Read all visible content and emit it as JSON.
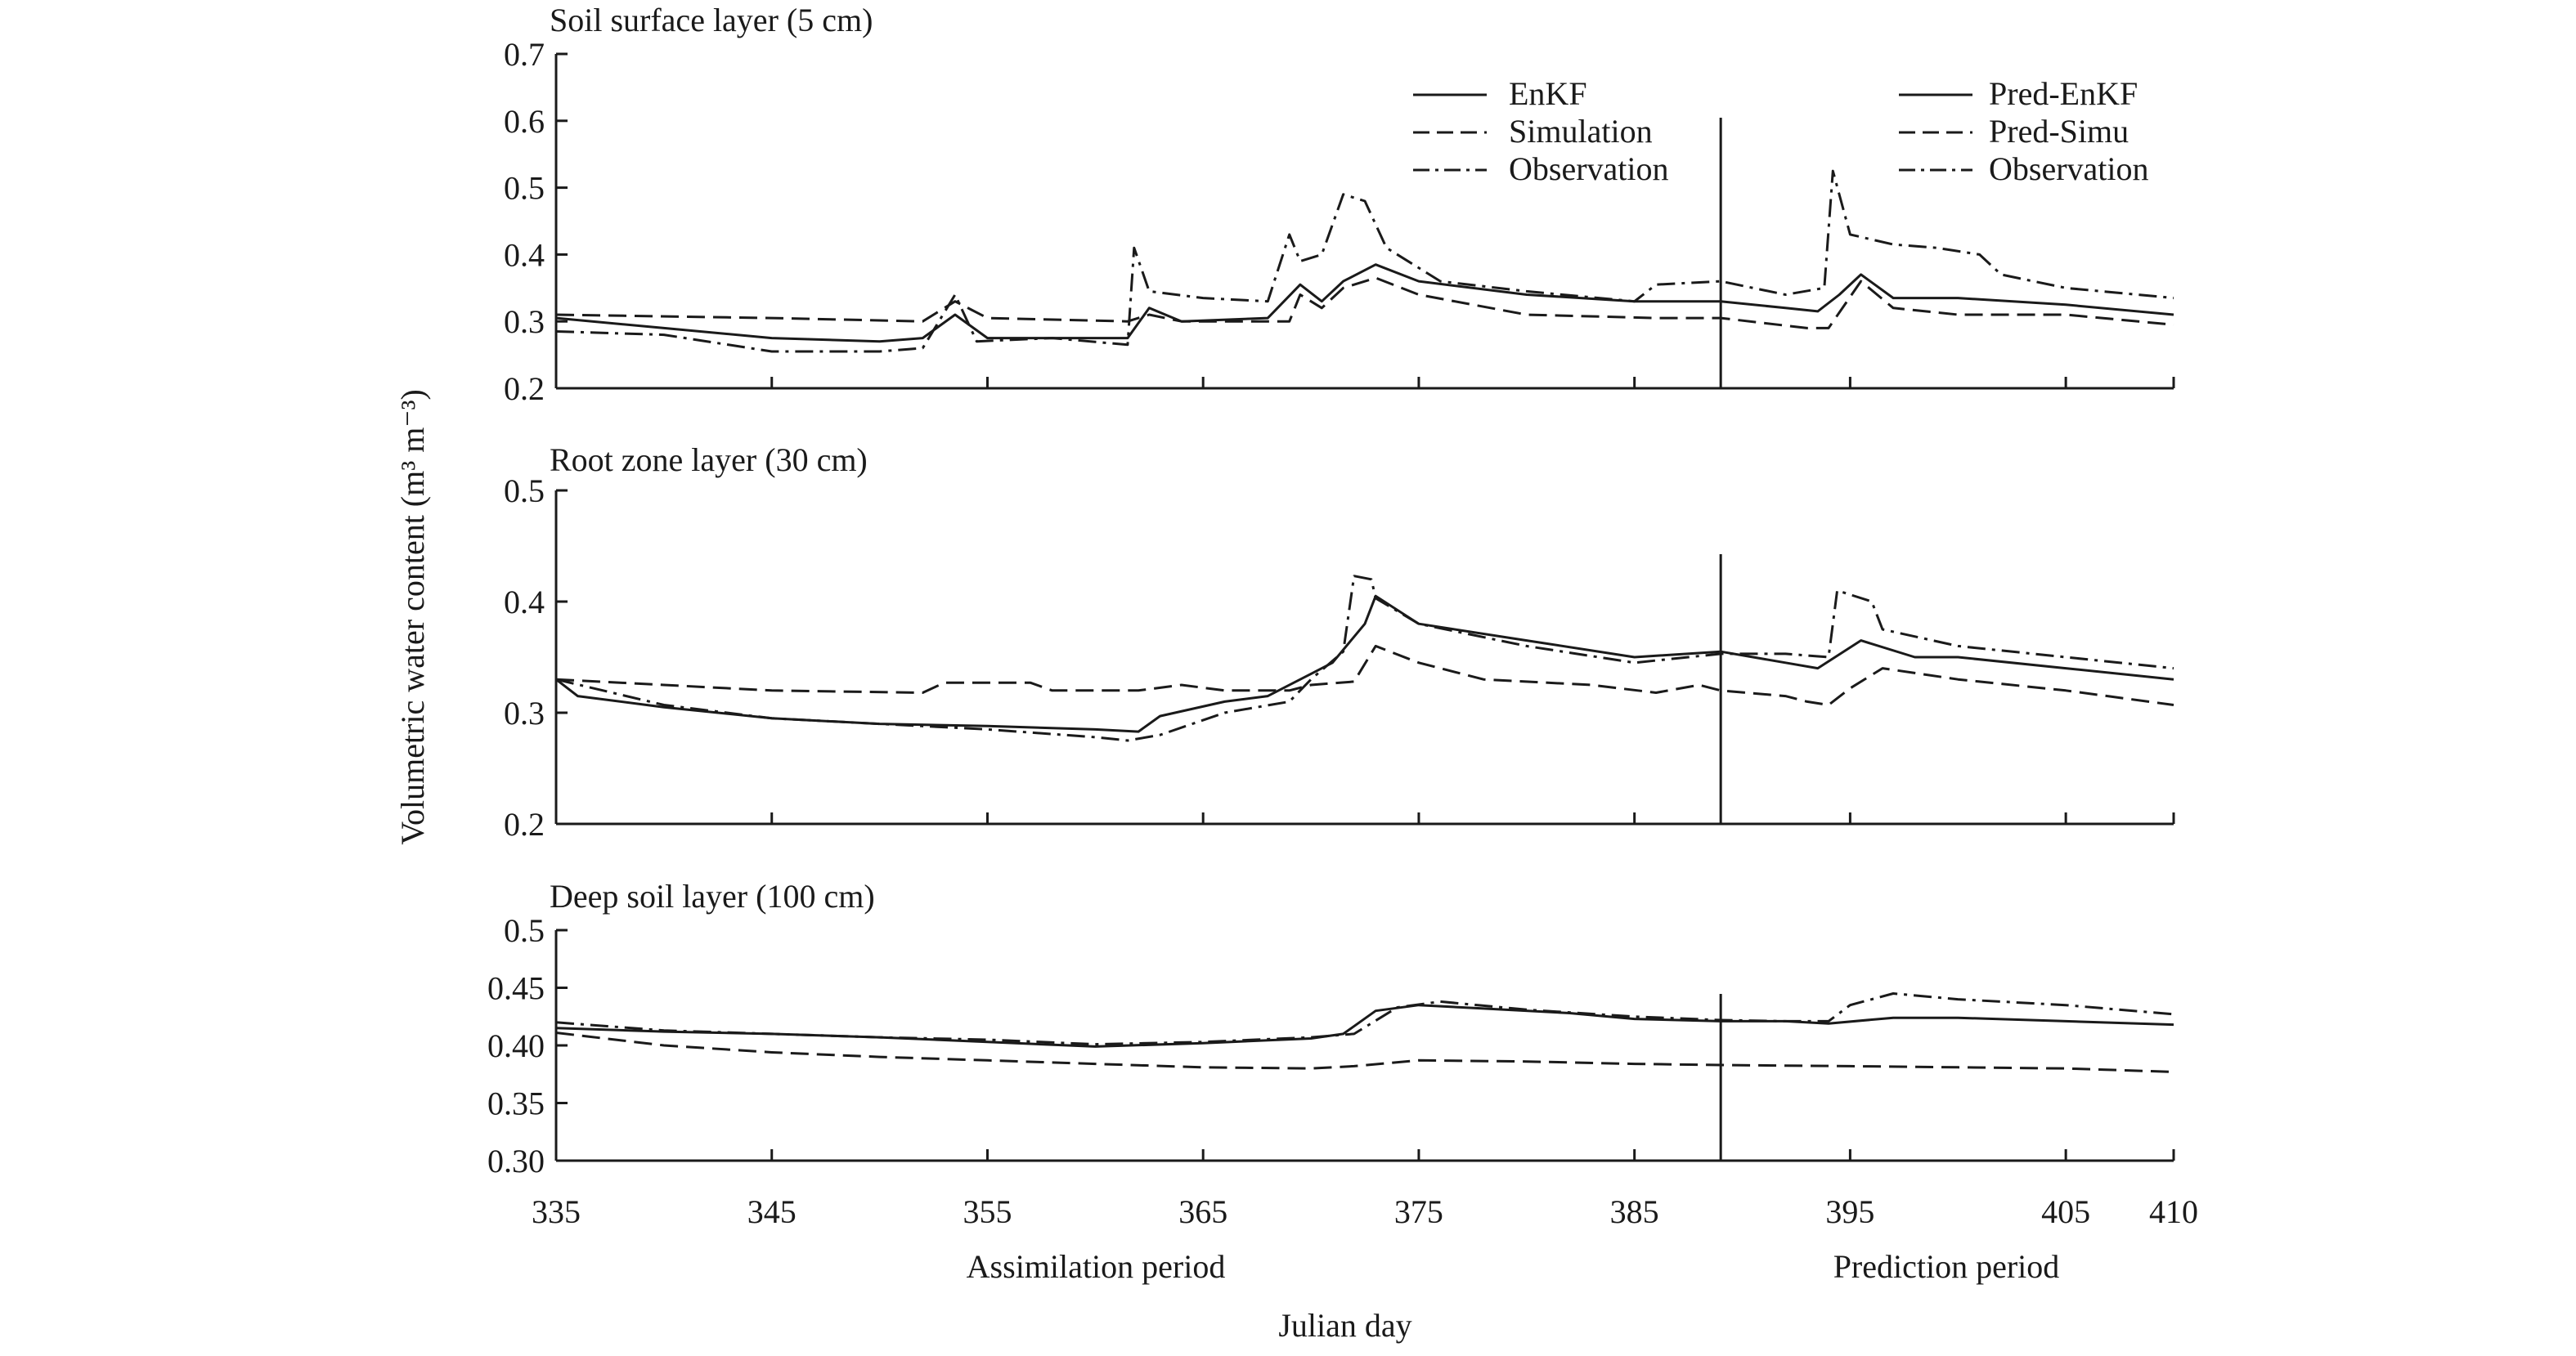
{
  "colors": {
    "ink": "#1a1a1a",
    "background": "#ffffff"
  },
  "figure": {
    "y_axis_label": "Volumetric water content (m³ m⁻³)",
    "x_axis_label": "Julian day",
    "period_labels": {
      "assimilation": "Assimilation period",
      "prediction": "Prediction period"
    },
    "x_ticks": [
      "335",
      "345",
      "355",
      "365",
      "375",
      "385",
      "395",
      "405",
      "410"
    ],
    "legend_left": [
      "EnKF",
      "Simulation",
      "Observation"
    ],
    "legend_right": [
      "Pred-EnKF",
      "Pred-Simu",
      "Observation"
    ]
  },
  "chart_data": [
    {
      "type": "line",
      "title": "Soil surface layer (5 cm)",
      "xlabel": "Julian day",
      "ylabel": "Volumetric water content (m³ m⁻³)",
      "xlim": [
        335,
        410
      ],
      "ylim": [
        0.2,
        0.7
      ],
      "y_ticks": [
        "0.2",
        "0.3",
        "0.4",
        "0.5",
        "0.6",
        "0.7"
      ],
      "split_day": 389,
      "series": [
        {
          "name": "EnKF",
          "style": "solid",
          "points": [
            [
              335,
              0.305
            ],
            [
              340,
              0.29
            ],
            [
              345,
              0.275
            ],
            [
              350,
              0.27
            ],
            [
              352,
              0.275
            ],
            [
              353.5,
              0.31
            ],
            [
              355,
              0.275
            ],
            [
              358,
              0.275
            ],
            [
              361.5,
              0.275
            ],
            [
              362.5,
              0.32
            ],
            [
              364,
              0.3
            ],
            [
              368,
              0.305
            ],
            [
              369.5,
              0.355
            ],
            [
              370.5,
              0.33
            ],
            [
              371.5,
              0.36
            ],
            [
              373,
              0.385
            ],
            [
              375,
              0.36
            ],
            [
              380,
              0.34
            ],
            [
              385,
              0.33
            ],
            [
              389,
              0.33
            ],
            [
              392,
              0.32
            ],
            [
              393.5,
              0.315
            ],
            [
              394.5,
              0.34
            ],
            [
              395.5,
              0.37
            ],
            [
              397,
              0.335
            ],
            [
              400,
              0.335
            ],
            [
              405,
              0.325
            ],
            [
              410,
              0.31
            ]
          ]
        },
        {
          "name": "Simulation",
          "style": "dashed",
          "points": [
            [
              335,
              0.31
            ],
            [
              345,
              0.305
            ],
            [
              352,
              0.3
            ],
            [
              353.5,
              0.33
            ],
            [
              355,
              0.305
            ],
            [
              361.5,
              0.3
            ],
            [
              362.5,
              0.31
            ],
            [
              364,
              0.3
            ],
            [
              369,
              0.3
            ],
            [
              369.5,
              0.34
            ],
            [
              370.5,
              0.32
            ],
            [
              371.5,
              0.35
            ],
            [
              373,
              0.365
            ],
            [
              375,
              0.34
            ],
            [
              380,
              0.31
            ],
            [
              386,
              0.305
            ],
            [
              389,
              0.305
            ],
            [
              393,
              0.29
            ],
            [
              394,
              0.29
            ],
            [
              395.5,
              0.36
            ],
            [
              397,
              0.32
            ],
            [
              400,
              0.31
            ],
            [
              405,
              0.31
            ],
            [
              410,
              0.295
            ]
          ]
        },
        {
          "name": "Observation",
          "style": "dashdot",
          "points": [
            [
              335,
              0.285
            ],
            [
              340,
              0.28
            ],
            [
              345,
              0.255
            ],
            [
              350,
              0.255
            ],
            [
              352,
              0.26
            ],
            [
              353.5,
              0.34
            ],
            [
              354.5,
              0.27
            ],
            [
              358,
              0.275
            ],
            [
              361.5,
              0.265
            ],
            [
              361.8,
              0.41
            ],
            [
              362.5,
              0.345
            ],
            [
              365,
              0.335
            ],
            [
              368,
              0.33
            ],
            [
              369,
              0.43
            ],
            [
              369.5,
              0.39
            ],
            [
              370.5,
              0.4
            ],
            [
              371.5,
              0.49
            ],
            [
              372.5,
              0.48
            ],
            [
              373.5,
              0.41
            ],
            [
              376,
              0.36
            ],
            [
              380,
              0.345
            ],
            [
              385,
              0.33
            ],
            [
              386,
              0.355
            ],
            [
              389,
              0.36
            ],
            [
              392,
              0.34
            ],
            [
              393.8,
              0.35
            ],
            [
              394.2,
              0.525
            ],
            [
              395,
              0.43
            ],
            [
              397,
              0.415
            ],
            [
              399,
              0.41
            ],
            [
              401,
              0.4
            ],
            [
              402,
              0.37
            ],
            [
              405,
              0.35
            ],
            [
              410,
              0.335
            ]
          ]
        }
      ]
    },
    {
      "type": "line",
      "title": "Root zone layer (30 cm)",
      "xlabel": "Julian day",
      "ylabel": "Volumetric water content (m³ m⁻³)",
      "xlim": [
        335,
        410
      ],
      "ylim": [
        0.2,
        0.5
      ],
      "y_ticks": [
        "0.2",
        "0.3",
        "0.4",
        "0.5"
      ],
      "split_day": 389,
      "series": [
        {
          "name": "EnKF",
          "style": "solid",
          "points": [
            [
              335,
              0.33
            ],
            [
              336,
              0.315
            ],
            [
              340,
              0.305
            ],
            [
              345,
              0.295
            ],
            [
              350,
              0.29
            ],
            [
              355,
              0.288
            ],
            [
              360,
              0.285
            ],
            [
              362,
              0.283
            ],
            [
              363,
              0.297
            ],
            [
              366,
              0.31
            ],
            [
              368,
              0.315
            ],
            [
              370,
              0.335
            ],
            [
              371,
              0.345
            ],
            [
              372.5,
              0.38
            ],
            [
              373,
              0.405
            ],
            [
              375,
              0.38
            ],
            [
              380,
              0.365
            ],
            [
              385,
              0.35
            ],
            [
              389,
              0.355
            ],
            [
              392,
              0.345
            ],
            [
              393.5,
              0.34
            ],
            [
              395.5,
              0.365
            ],
            [
              398,
              0.35
            ],
            [
              400,
              0.35
            ],
            [
              405,
              0.34
            ],
            [
              410,
              0.33
            ]
          ]
        },
        {
          "name": "Simulation",
          "style": "dashed",
          "points": [
            [
              335,
              0.33
            ],
            [
              340,
              0.325
            ],
            [
              345,
              0.32
            ],
            [
              352,
              0.318
            ],
            [
              353,
              0.327
            ],
            [
              357,
              0.327
            ],
            [
              358,
              0.32
            ],
            [
              362,
              0.32
            ],
            [
              364,
              0.325
            ],
            [
              366,
              0.32
            ],
            [
              369,
              0.32
            ],
            [
              370,
              0.325
            ],
            [
              372,
              0.328
            ],
            [
              373,
              0.36
            ],
            [
              375,
              0.345
            ],
            [
              378,
              0.33
            ],
            [
              383,
              0.325
            ],
            [
              386,
              0.318
            ],
            [
              388,
              0.325
            ],
            [
              389,
              0.32
            ],
            [
              392,
              0.315
            ],
            [
              393,
              0.31
            ],
            [
              394,
              0.307
            ],
            [
              395,
              0.322
            ],
            [
              396.5,
              0.34
            ],
            [
              400,
              0.33
            ],
            [
              405,
              0.32
            ],
            [
              410,
              0.307
            ]
          ]
        },
        {
          "name": "Observation",
          "style": "dashdot",
          "points": [
            [
              335,
              0.33
            ],
            [
              340,
              0.307
            ],
            [
              345,
              0.295
            ],
            [
              350,
              0.29
            ],
            [
              355,
              0.285
            ],
            [
              360,
              0.278
            ],
            [
              361.5,
              0.275
            ],
            [
              363,
              0.28
            ],
            [
              366,
              0.3
            ],
            [
              369,
              0.31
            ],
            [
              370,
              0.33
            ],
            [
              371.5,
              0.355
            ],
            [
              372,
              0.423
            ],
            [
              372.8,
              0.42
            ],
            [
              373,
              0.403
            ],
            [
              375,
              0.38
            ],
            [
              380,
              0.36
            ],
            [
              385,
              0.345
            ],
            [
              389,
              0.353
            ],
            [
              392,
              0.353
            ],
            [
              394,
              0.35
            ],
            [
              394.4,
              0.41
            ],
            [
              396,
              0.4
            ],
            [
              396.5,
              0.375
            ],
            [
              400,
              0.36
            ],
            [
              405,
              0.35
            ],
            [
              410,
              0.34
            ]
          ]
        }
      ]
    },
    {
      "type": "line",
      "title": "Deep soil layer (100 cm)",
      "xlabel": "Julian day",
      "ylabel": "Volumetric water content (m³ m⁻³)",
      "xlim": [
        335,
        410
      ],
      "ylim": [
        0.3,
        0.5
      ],
      "y_ticks": [
        "0.30",
        "0.35",
        "0.40",
        "0.45",
        "0.5"
      ],
      "split_day": 389,
      "series": [
        {
          "name": "EnKF",
          "style": "solid",
          "points": [
            [
              335,
              0.415
            ],
            [
              340,
              0.412
            ],
            [
              345,
              0.41
            ],
            [
              350,
              0.407
            ],
            [
              355,
              0.403
            ],
            [
              360,
              0.399
            ],
            [
              365,
              0.402
            ],
            [
              370,
              0.406
            ],
            [
              371.5,
              0.41
            ],
            [
              373,
              0.43
            ],
            [
              375,
              0.435
            ],
            [
              378,
              0.432
            ],
            [
              382,
              0.428
            ],
            [
              385,
              0.423
            ],
            [
              389,
              0.421
            ],
            [
              392,
              0.421
            ],
            [
              394,
              0.419
            ],
            [
              397,
              0.424
            ],
            [
              400,
              0.424
            ],
            [
              405,
              0.421
            ],
            [
              410,
              0.418
            ]
          ]
        },
        {
          "name": "Simulation",
          "style": "dashed",
          "points": [
            [
              335,
              0.411
            ],
            [
              340,
              0.4
            ],
            [
              345,
              0.394
            ],
            [
              350,
              0.39
            ],
            [
              355,
              0.387
            ],
            [
              360,
              0.384
            ],
            [
              365,
              0.381
            ],
            [
              370,
              0.38
            ],
            [
              372,
              0.382
            ],
            [
              375,
              0.387
            ],
            [
              380,
              0.386
            ],
            [
              385,
              0.384
            ],
            [
              389,
              0.383
            ],
            [
              395,
              0.382
            ],
            [
              400,
              0.381
            ],
            [
              405,
              0.38
            ],
            [
              410,
              0.377
            ]
          ]
        },
        {
          "name": "Observation",
          "style": "dashdot",
          "points": [
            [
              335,
              0.42
            ],
            [
              340,
              0.413
            ],
            [
              345,
              0.41
            ],
            [
              350,
              0.407
            ],
            [
              355,
              0.405
            ],
            [
              360,
              0.401
            ],
            [
              365,
              0.403
            ],
            [
              370,
              0.407
            ],
            [
              372,
              0.41
            ],
            [
              374,
              0.433
            ],
            [
              376,
              0.438
            ],
            [
              380,
              0.431
            ],
            [
              385,
              0.425
            ],
            [
              389,
              0.422
            ],
            [
              392,
              0.421
            ],
            [
              394,
              0.421
            ],
            [
              395,
              0.435
            ],
            [
              397,
              0.445
            ],
            [
              400,
              0.44
            ],
            [
              405,
              0.435
            ],
            [
              410,
              0.427
            ]
          ]
        }
      ]
    }
  ]
}
